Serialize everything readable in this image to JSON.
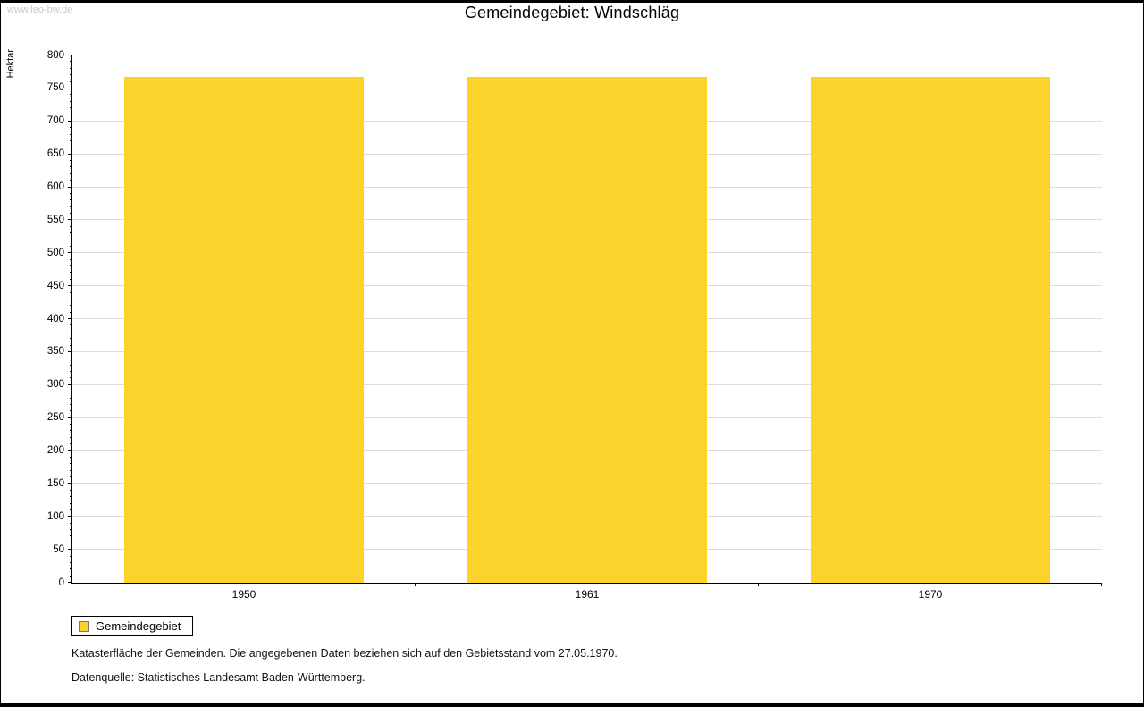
{
  "watermark": "www.leo-bw.de",
  "chart_data": {
    "type": "bar",
    "title": "Gemeindegebiet: Windschläg",
    "ylabel": "Hektar",
    "xlabel": "",
    "categories": [
      "1950",
      "1961",
      "1970"
    ],
    "values": [
      767,
      767,
      767
    ],
    "ylim": [
      0,
      800
    ],
    "ytick_major": 50,
    "ytick_minor": 10,
    "bar_color": "#FCD32B",
    "grid_color": "#dcdcdc",
    "grid": true,
    "legend_position": "bottom-left",
    "legend": [
      {
        "label": "Gemeindegebiet",
        "color": "#FCD32B"
      }
    ]
  },
  "footnotes": {
    "line1": "Katasterfläche der Gemeinden. Die angegebenen Daten beziehen sich auf den Gebietsstand vom 27.05.1970.",
    "line2": "Datenquelle: Statistisches Landesamt Baden-Württemberg."
  }
}
